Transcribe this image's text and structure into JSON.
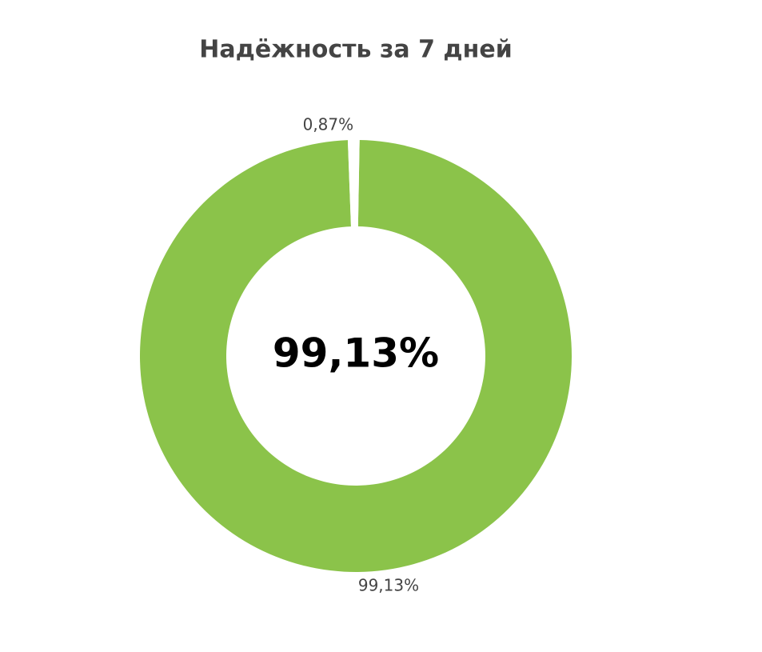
{
  "chart_data": {
    "type": "pie",
    "title": "Надёжность за 7 дней",
    "values": [
      99.13,
      0.87
    ],
    "value_labels": [
      "99,13%",
      "0,87%"
    ],
    "colors": [
      "#8bc34a",
      "#ffffff"
    ],
    "center_label": "99,13%"
  }
}
